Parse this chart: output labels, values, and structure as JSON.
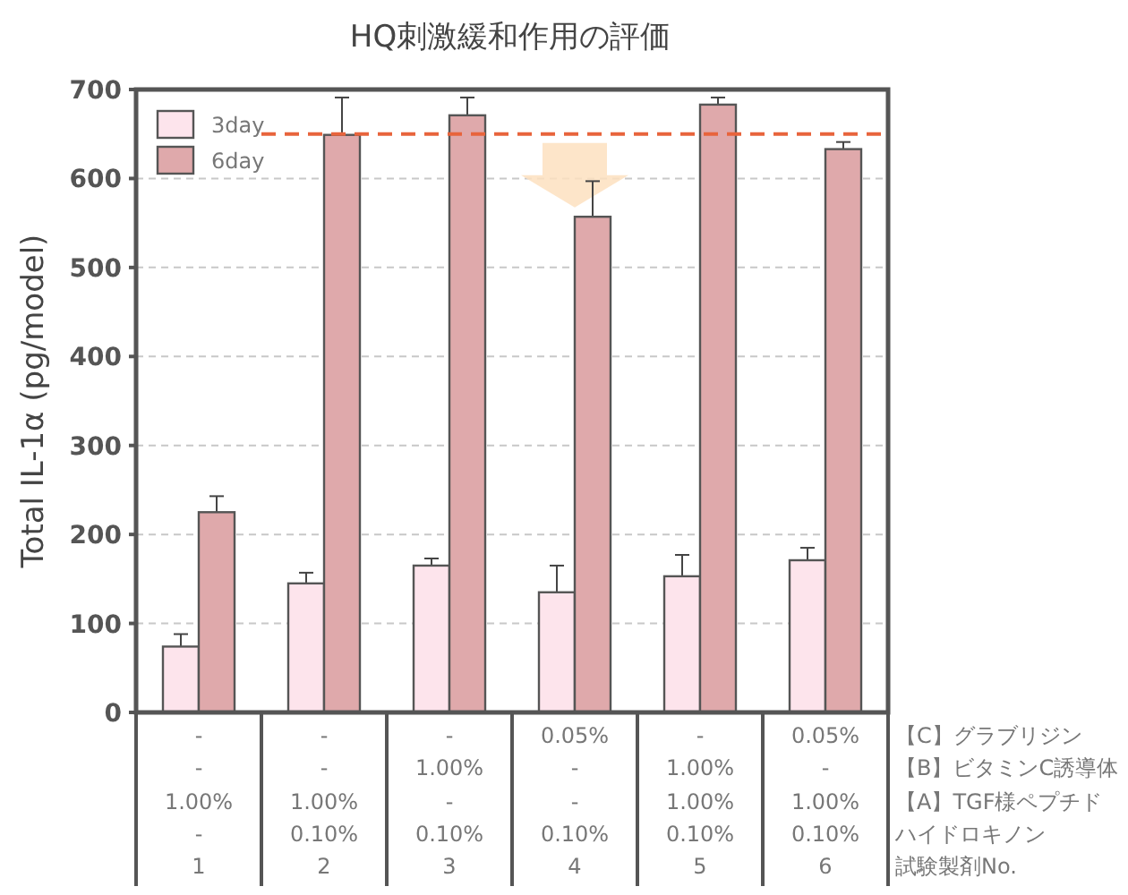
{
  "chart_data": {
    "type": "bar",
    "title": "HQ刺激緩和作用の評価",
    "ylabel": "Total IL-1α (pg/model)",
    "categories": [
      "-\n-\n1.00%\n-\n1",
      "-\n-\n1.00%\n0.10%\n2",
      "-\n1.00%\n-\n0.10%\n3",
      "0.05%\n-\n-\n0.10%\n4",
      "-\n1.00%\n1.00%\n0.10%\n5",
      "0.05%\n-\n1.00%\n0.10%\n6"
    ],
    "series": [
      {
        "name": "3day",
        "color": "#fde4ec",
        "values": [
          74,
          145,
          165,
          135,
          153,
          171
        ],
        "errors": [
          14,
          12,
          8,
          30,
          24,
          14
        ]
      },
      {
        "name": "6day",
        "color": "#dfa9ab",
        "values": [
          225,
          649,
          671,
          557,
          683,
          633
        ],
        "errors": [
          18,
          42,
          20,
          40,
          8,
          8
        ]
      }
    ],
    "ylim": [
      0,
      700
    ],
    "yticks": [
      0,
      100,
      200,
      300,
      400,
      500,
      600,
      700
    ],
    "grid": "y",
    "legend": "top left",
    "ref_lines": [
      {
        "axis": "y",
        "value": 650,
        "color": "#e8643c",
        "line_style": "dashed"
      }
    ],
    "annotations": [
      "【C】グラブリジン",
      "【B】ビタミンC誘導体",
      "【A】TGF様ペプチド",
      "ハイドロキノン",
      "試験製剤No."
    ]
  }
}
